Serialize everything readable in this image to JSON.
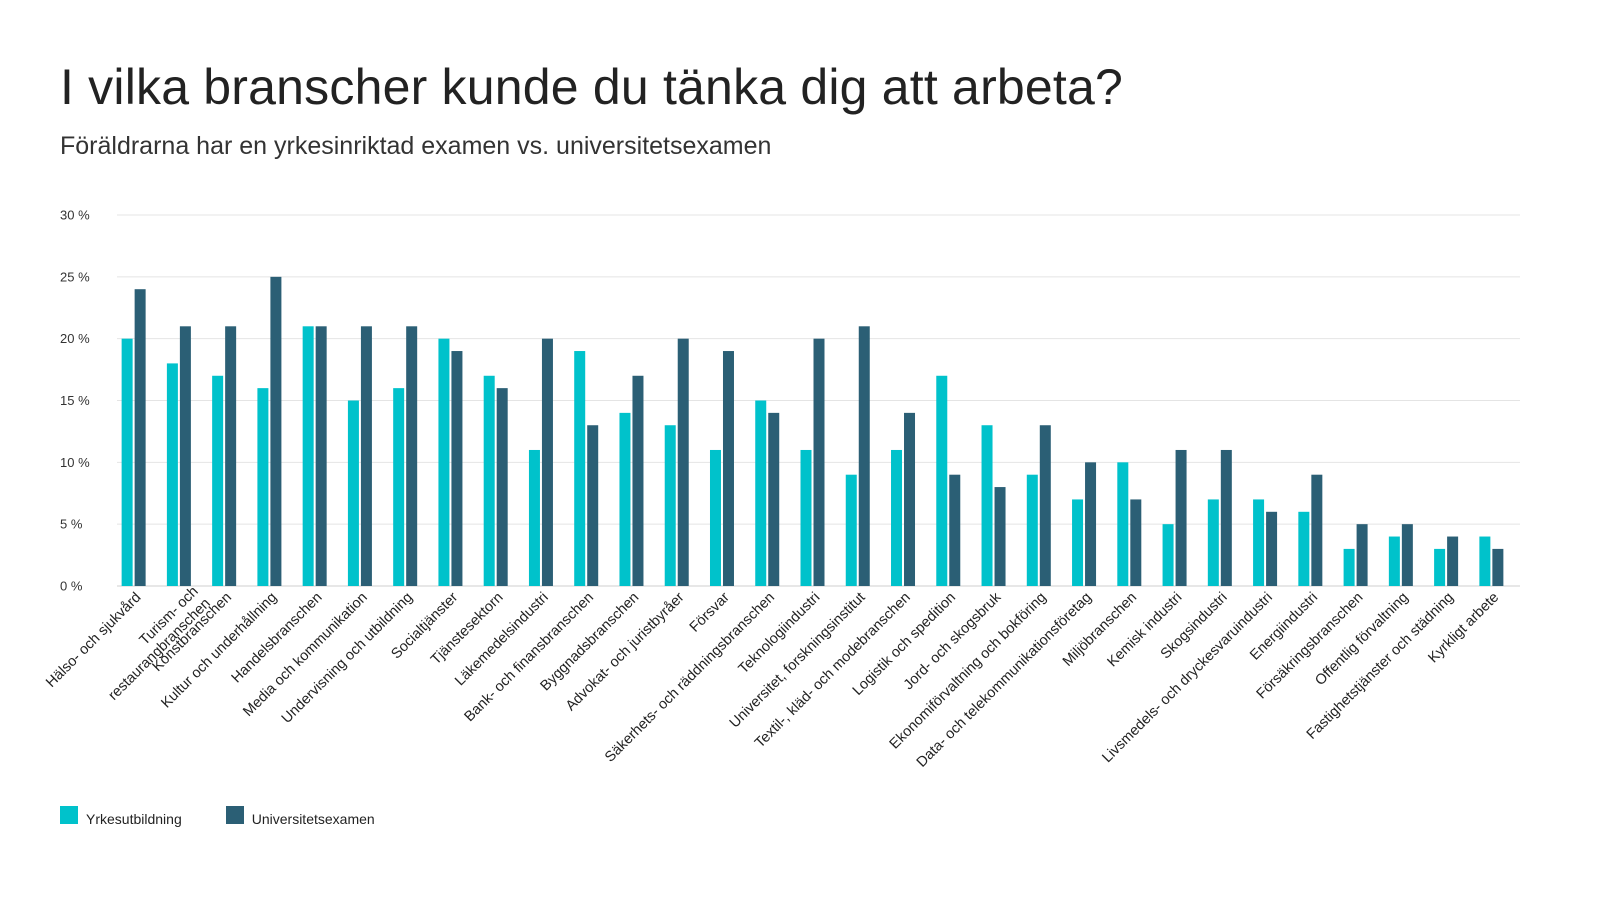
{
  "chart_data": {
    "type": "bar",
    "title": "I vilka branscher kunde du tänka dig att arbeta?",
    "subtitle": "Föräldrarna har en yrkesinriktad examen vs. universitetsexamen",
    "categories": [
      "Hälso- och sjukvård",
      "Turism- och restaurangbranschen",
      "Konstbranschen",
      "Kultur och underhållning",
      "Handelsbranschen",
      "Media och kommunikation",
      "Undervisning och utbildning",
      "Socialtjänster",
      "Tjänstesektorn",
      "Läkemedelsindustri",
      "Bank- och finansbranschen",
      "Byggnadsbranschen",
      "Advokat- och juristbyråer",
      "Försvar",
      "Säkerhets- och räddningsbranschen",
      "Teknologiindustri",
      "Universitet, forskningsinstitut",
      "Textil-, kläd- och modebranschen",
      "Logistik och spedition",
      "Jord- och skogsbruk",
      "Ekonomiförvaltning och bokföring",
      "Data- och telekommunikationsföretag",
      "Miljöbranschen",
      "Kemisk industri",
      "Skogsindustri",
      "Livsmedels- och dryckesvaruindustri",
      "Energiindustri",
      "Försäkringsbranschen",
      "Offentlig förvaltning",
      "Fastighetstjänster och städning",
      "Kyrkligt arbete"
    ],
    "series": [
      {
        "name": "Yrkesutbildning",
        "color": "#00c2cb",
        "values": [
          20,
          18,
          17,
          16,
          21,
          15,
          16,
          20,
          17,
          11,
          19,
          14,
          13,
          11,
          15,
          11,
          9,
          11,
          17,
          13,
          9,
          7,
          10,
          5,
          7,
          7,
          6,
          3,
          4,
          3,
          4
        ]
      },
      {
        "name": "Universitetsexamen",
        "color": "#2b5f75",
        "values": [
          24,
          21,
          21,
          25,
          21,
          21,
          21,
          19,
          16,
          20,
          13,
          17,
          20,
          19,
          14,
          20,
          21,
          14,
          9,
          8,
          13,
          10,
          7,
          11,
          11,
          6,
          9,
          5,
          5,
          4,
          3
        ]
      }
    ],
    "yticks": [
      "0 %",
      "5 %",
      "10 %",
      "15 %",
      "20 %",
      "25 %",
      "30 %"
    ],
    "ylim": [
      0,
      30
    ],
    "grid": true,
    "legend": "bottom-left",
    "xlabel": "",
    "ylabel": ""
  }
}
